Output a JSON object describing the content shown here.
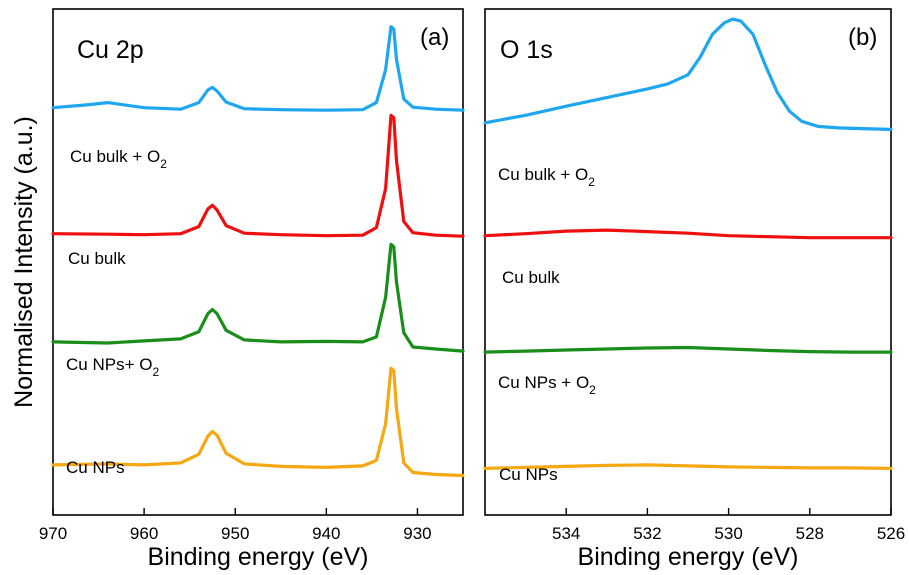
{
  "chart_data": [
    {
      "type": "line",
      "panel_letter": "(a)",
      "title": "Cu 2p",
      "xlabel": "Binding energy (eV)",
      "ylabel": "Normalised Intensity (a.u.)",
      "xlim": [
        970,
        925
      ],
      "x_reversed": true,
      "xticks": [
        970,
        960,
        950,
        940,
        930
      ],
      "ylim": [
        0,
        100
      ],
      "yticks": "none",
      "grid": false,
      "legend": "inline labels left of each trace",
      "series": [
        {
          "name": "Cu bulk + O2",
          "label_main": "Cu bulk + O",
          "label_sub": "2",
          "color": "#1ea7f0",
          "offset": 80,
          "x": [
            970,
            966,
            964,
            960,
            956,
            954,
            953,
            952.5,
            952,
            951,
            949,
            945,
            940,
            936,
            934.5,
            933.5,
            932.9,
            932.6,
            932.3,
            931.5,
            930.5,
            928,
            925
          ],
          "y": [
            80.5,
            81.1,
            81.5,
            80.5,
            80.2,
            81.5,
            84.0,
            84.5,
            83.8,
            81.6,
            80.3,
            80.1,
            80.0,
            80.1,
            81.5,
            88.0,
            96.5,
            96.0,
            90.0,
            82.2,
            80.6,
            80.2,
            80.0
          ]
        },
        {
          "name": "Cu bulk",
          "label_main": "Cu bulk",
          "color": "#ee1010",
          "offset": 55,
          "x": [
            970,
            964,
            960,
            956,
            954,
            953,
            952.5,
            952,
            951,
            949,
            945,
            940,
            936,
            934.5,
            933.5,
            932.9,
            932.6,
            932.3,
            931.5,
            930.5,
            928,
            925
          ],
          "y": [
            55.6,
            55.5,
            55.4,
            55.6,
            57.0,
            60.5,
            61.2,
            60.3,
            57.2,
            55.7,
            55.4,
            55.2,
            55.3,
            56.8,
            64.5,
            79.0,
            78.5,
            70.0,
            58.0,
            55.8,
            55.3,
            55.1
          ]
        },
        {
          "name": "Cu NPs+ O2",
          "label_main": "Cu NPs+ O",
          "label_sub": "2",
          "color": "#1a8e1a",
          "offset": 32,
          "x": [
            970,
            964,
            960,
            956,
            954,
            953,
            952.5,
            952,
            951,
            949,
            945,
            940,
            936,
            934.5,
            933.5,
            932.9,
            932.6,
            932.3,
            931.5,
            930.5,
            928,
            925
          ],
          "y": [
            34.2,
            34.0,
            34.4,
            34.8,
            36.2,
            39.8,
            40.6,
            39.8,
            36.5,
            34.6,
            34.2,
            34.3,
            34.2,
            35.2,
            43.0,
            53.5,
            53.0,
            46.0,
            36.0,
            33.2,
            32.8,
            32.4
          ]
        },
        {
          "name": "Cu NPs",
          "label_main": "Cu NPs",
          "color": "#f5a812",
          "offset": 8,
          "x": [
            970,
            964,
            960,
            956,
            954,
            953,
            952.5,
            952,
            951,
            949,
            945,
            940,
            936,
            934.5,
            933.5,
            932.9,
            932.6,
            932.3,
            931.5,
            930.5,
            928,
            925
          ],
          "y": [
            9.9,
            10.1,
            9.9,
            10.3,
            12.0,
            15.6,
            16.5,
            15.8,
            12.2,
            10.1,
            9.6,
            9.4,
            9.7,
            10.8,
            18.0,
            29.0,
            28.5,
            21.0,
            10.3,
            8.4,
            8.0,
            7.8
          ]
        }
      ]
    },
    {
      "type": "line",
      "panel_letter": "(b)",
      "title": "O 1s",
      "xlabel": "Binding energy (eV)",
      "xlim": [
        536,
        526
      ],
      "x_reversed": true,
      "xticks": [
        534,
        532,
        530,
        528,
        526
      ],
      "ylim": [
        0,
        100
      ],
      "yticks": "none",
      "grid": false,
      "legend": "inline labels below each trace",
      "series": [
        {
          "name": "Cu bulk + O2",
          "label_main": "Cu bulk + O",
          "label_sub": "2",
          "color": "#1ea7f0",
          "offset": 76,
          "x": [
            536,
            535,
            534,
            533,
            532,
            531.5,
            531,
            530.7,
            530.4,
            530.1,
            529.9,
            529.7,
            529.4,
            529.1,
            528.8,
            528.5,
            528.2,
            527.8,
            527.3,
            526.5,
            526
          ],
          "y": [
            77.5,
            79.0,
            80.8,
            82.5,
            84.2,
            85.2,
            87.0,
            90.5,
            95.0,
            97.3,
            98.0,
            97.6,
            95.0,
            89.0,
            83.5,
            79.8,
            77.8,
            76.8,
            76.5,
            76.3,
            76.2
          ]
        },
        {
          "name": "Cu bulk",
          "label_main": "Cu bulk",
          "color": "#ee1010",
          "offset": 55,
          "x": [
            536,
            535,
            534,
            533,
            532,
            531,
            530,
            529,
            528,
            527,
            526
          ],
          "y": [
            55.2,
            55.6,
            56.1,
            56.3,
            56.0,
            55.7,
            55.2,
            55.0,
            54.8,
            54.8,
            54.8
          ]
        },
        {
          "name": "Cu NPs + O2",
          "label_main": "Cu NPs + O",
          "label_sub": "2",
          "color": "#1a8e1a",
          "offset": 32,
          "x": [
            536,
            535,
            534,
            533,
            532,
            531,
            530,
            529,
            528,
            527,
            526
          ],
          "y": [
            32.2,
            32.4,
            32.6,
            32.8,
            33.0,
            33.1,
            32.8,
            32.5,
            32.3,
            32.2,
            32.2
          ]
        },
        {
          "name": "Cu NPs",
          "label_main": "Cu NPs",
          "color": "#f5a812",
          "offset": 9,
          "x": [
            536,
            535,
            534,
            533,
            532,
            531,
            530,
            529,
            528,
            527,
            526
          ],
          "y": [
            9.2,
            9.4,
            9.6,
            9.8,
            9.9,
            9.7,
            9.5,
            9.4,
            9.3,
            9.3,
            9.2
          ]
        }
      ]
    }
  ]
}
